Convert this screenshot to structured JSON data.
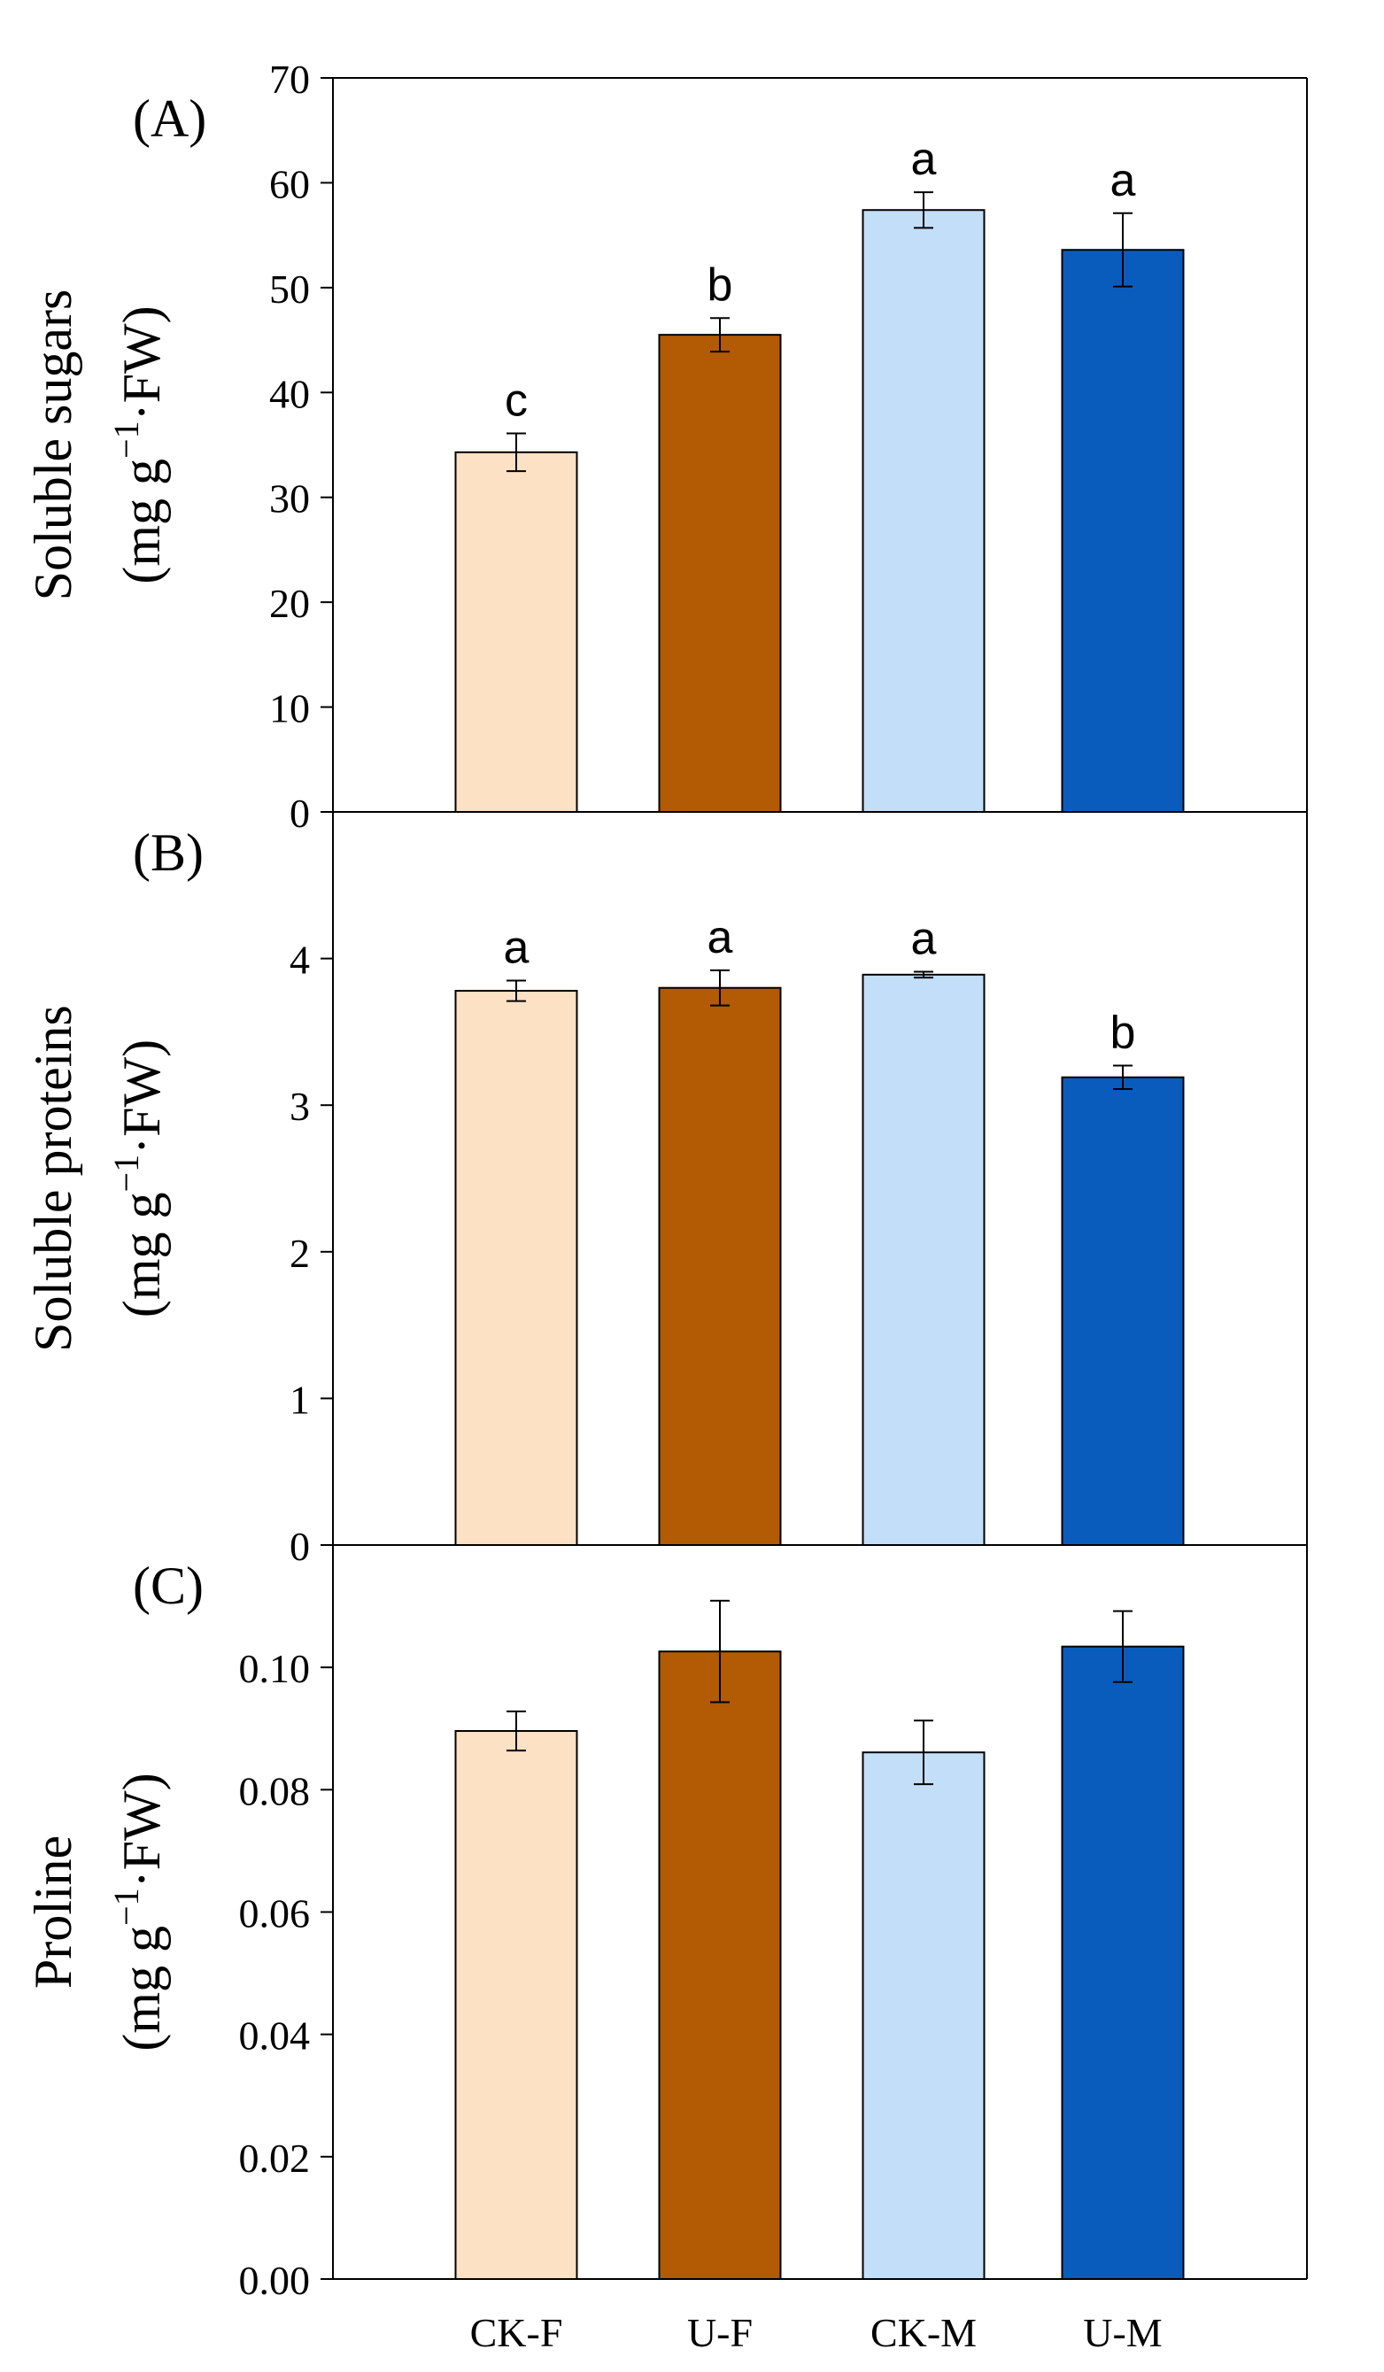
{
  "figure": {
    "colors": {
      "CK-F": "#fde1c4",
      "U-F": "#b35a04",
      "CK-M": "#c3def9",
      "U-M": "#0a5cbc"
    }
  },
  "chart_data": [
    {
      "type": "bar",
      "panel_label": "(A)",
      "ylabel": "Soluble sugars",
      "yunit_parts": [
        "(mg g",
        "−1",
        "·FW)"
      ],
      "categories": [
        "CK-F",
        "U-F",
        "CK-M",
        "U-M"
      ],
      "values": [
        34.3,
        45.5,
        57.4,
        53.6
      ],
      "errors": [
        1.8,
        1.6,
        1.7,
        3.5
      ],
      "significance": [
        "c",
        "b",
        "a",
        "a"
      ],
      "ylim": [
        0,
        70
      ],
      "yticks": [
        0,
        10,
        20,
        30,
        40,
        50,
        60,
        70
      ],
      "ytick_labels": [
        "0",
        "10",
        "20",
        "30",
        "40",
        "50",
        "60",
        "70"
      ]
    },
    {
      "type": "bar",
      "panel_label": "(B)",
      "ylabel": "Soluble proteins",
      "yunit_parts": [
        "(mg g",
        "−1",
        "·FW)"
      ],
      "categories": [
        "CK-F",
        "U-F",
        "CK-M",
        "U-M"
      ],
      "values": [
        3.78,
        3.8,
        3.89,
        3.19
      ],
      "errors": [
        0.07,
        0.12,
        0.02,
        0.08
      ],
      "significance": [
        "a",
        "a",
        "a",
        "b"
      ],
      "ylim": [
        0,
        5
      ],
      "yticks": [
        0,
        1,
        2,
        3,
        4
      ],
      "ytick_labels": [
        "0",
        "1",
        "2",
        "3",
        "4"
      ]
    },
    {
      "type": "bar",
      "panel_label": "(C)",
      "ylabel": "Proline",
      "yunit_parts": [
        "(mg g",
        "−1",
        "·FW)"
      ],
      "categories": [
        "CK-F",
        "U-F",
        "CK-M",
        "U-M"
      ],
      "values": [
        0.0896,
        0.1026,
        0.0861,
        0.1034
      ],
      "errors": [
        0.0032,
        0.0083,
        0.0052,
        0.0058
      ],
      "significance": [
        "",
        "",
        "",
        ""
      ],
      "ylim": [
        0,
        0.12
      ],
      "yticks": [
        0,
        0.02,
        0.04,
        0.06,
        0.08,
        0.1
      ],
      "ytick_labels": [
        "0.00",
        "0.02",
        "0.04",
        "0.06",
        "0.08",
        "0.10"
      ]
    }
  ]
}
